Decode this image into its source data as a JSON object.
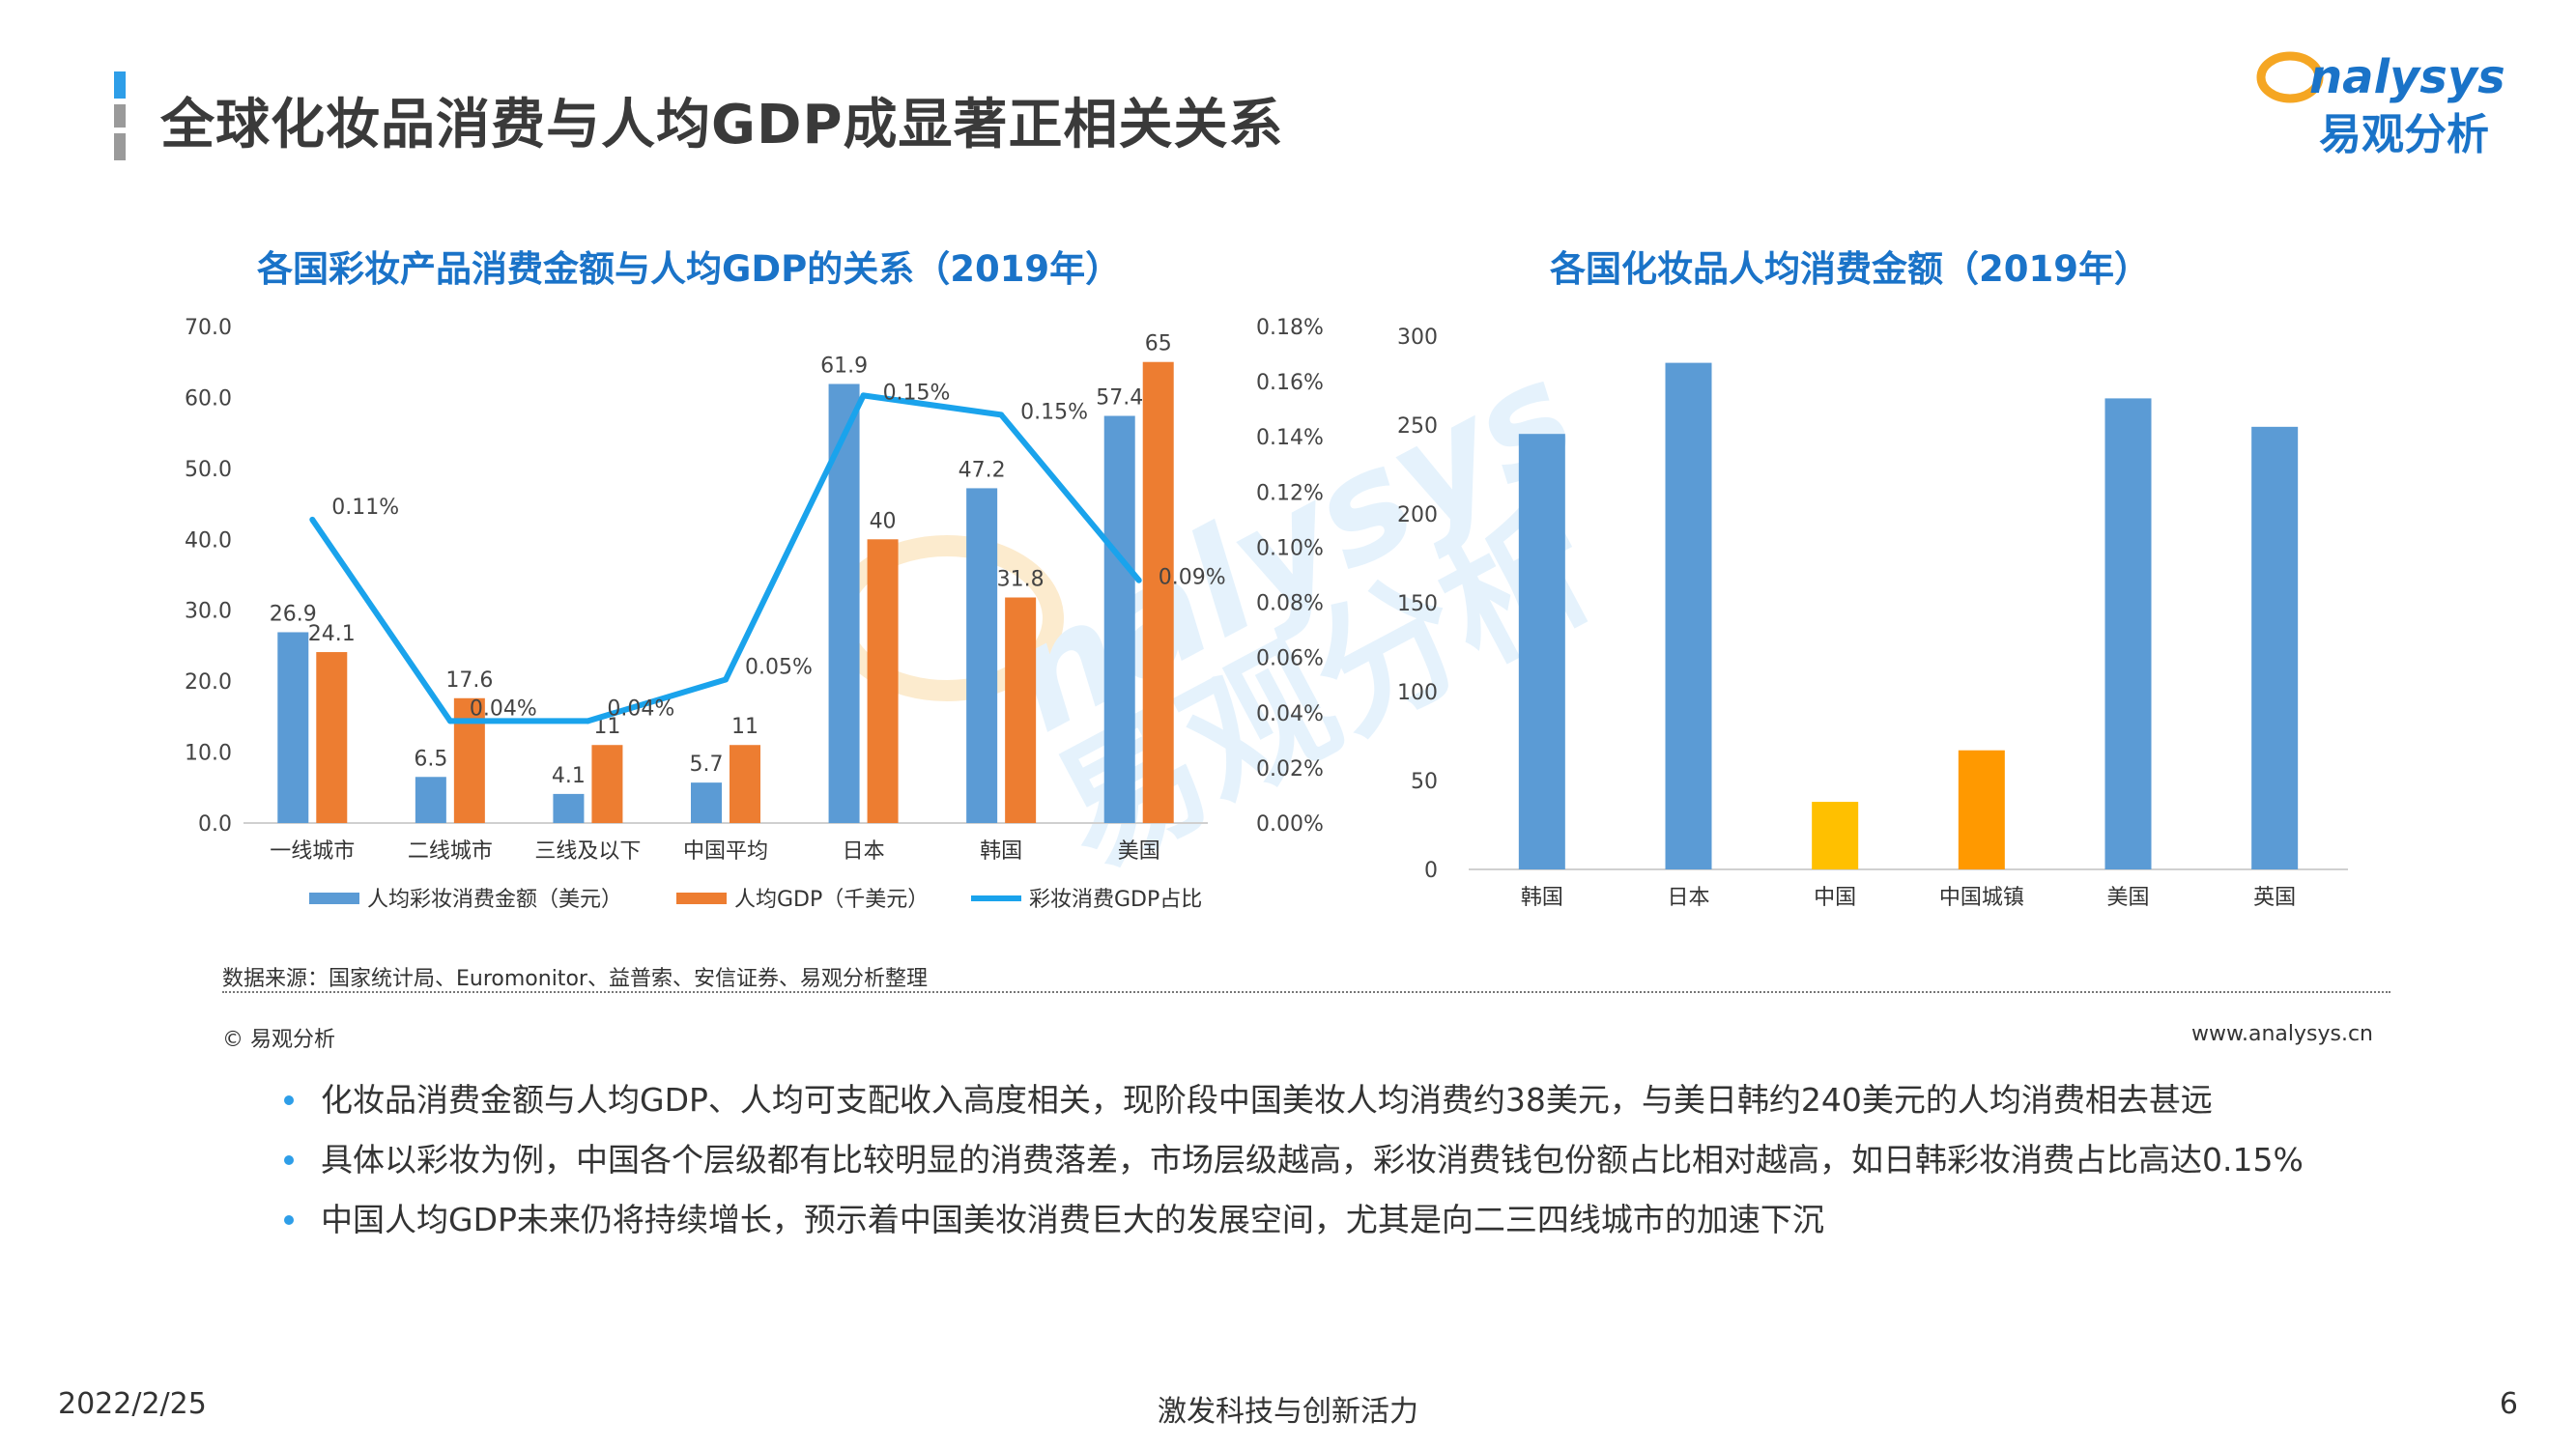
{
  "page": {
    "title": "全球化妆品消费与人均GDP成显著正相关关系",
    "logo_text_en": "nalysys",
    "logo_text_cn": "易观分析"
  },
  "colors": {
    "blue_bar": "#5b9bd5",
    "orange_bar": "#ed7d31",
    "line": "#1aa3ec",
    "china_yellow": "#ffc000",
    "china_urban_orange": "#ff9900",
    "title_blue": "#1a73c8"
  },
  "chart_data": [
    {
      "type": "bar",
      "title": "各国彩妆产品消费金额与人均GDP的关系（2019年）",
      "categories": [
        "一线城市",
        "二线城市",
        "三线及以下",
        "中国平均",
        "日本",
        "韩国",
        "美国"
      ],
      "ylim": [
        0,
        70
      ],
      "yticks": [
        "0.0",
        "10.0",
        "20.0",
        "30.0",
        "40.0",
        "50.0",
        "60.0",
        "70.0"
      ],
      "y2lim": [
        0,
        0.18
      ],
      "y2ticks": [
        "0.00%",
        "0.02%",
        "0.04%",
        "0.06%",
        "0.08%",
        "0.10%",
        "0.12%",
        "0.14%",
        "0.16%",
        "0.18%"
      ],
      "series": [
        {
          "name": "人均彩妆消费金额（美元）",
          "kind": "bar",
          "values": [
            26.9,
            6.5,
            4.1,
            5.7,
            61.9,
            47.2,
            57.4
          ],
          "labels": [
            "26.9",
            "6.5",
            "4.1",
            "5.7",
            "61.9",
            "47.2",
            "57.4"
          ]
        },
        {
          "name": "人均GDP（千美元）",
          "kind": "bar",
          "values": [
            24.1,
            17.6,
            11,
            11,
            40,
            31.8,
            65
          ],
          "labels": [
            "24.1",
            "17.6",
            "11",
            "11",
            "40",
            "31.8",
            "65"
          ]
        },
        {
          "name": "彩妆消费GDP占比",
          "kind": "line",
          "axis": "right",
          "values": [
            0.11,
            0.037,
            0.037,
            0.052,
            0.155,
            0.148,
            0.088
          ],
          "labels": [
            "0.11%",
            "0.04%",
            "0.04%",
            "0.05%",
            "0.15%",
            "0.15%",
            "0.09%"
          ]
        }
      ],
      "legend": "bottom"
    },
    {
      "type": "bar",
      "title": "各国化妆品人均消费金额（2019年）",
      "categories": [
        "韩国",
        "日本",
        "中国",
        "中国城镇",
        "美国",
        "英国"
      ],
      "values": [
        245,
        285,
        38,
        67,
        265,
        249
      ],
      "ylim": [
        0,
        300
      ],
      "yticks": [
        "0",
        "50",
        "100",
        "150",
        "200",
        "250",
        "300"
      ]
    }
  ],
  "source": {
    "text": "数据来源：国家统计局、Euromonitor、益普索、安信证券、易观分析整理",
    "copyright": "© 易观分析",
    "website": "www.analysys.cn"
  },
  "bullets": [
    "化妆品消费金额与人均GDP、人均可支配收入高度相关，现阶段中国美妆人均消费约38美元，与美日韩约240美元的人均消费相去甚远",
    "具体以彩妆为例，中国各个层级都有比较明显的消费落差，市场层级越高，彩妆消费钱包份额占比相对越高，如日韩彩妆消费占比高达0.15%",
    "中国人均GDP未来仍将持续增长，预示着中国美妆消费巨大的发展空间，尤其是向二三四线城市的加速下沉"
  ],
  "footer": {
    "date": "2022/2/25",
    "slogan": "激发科技与创新活力",
    "page": "6"
  }
}
